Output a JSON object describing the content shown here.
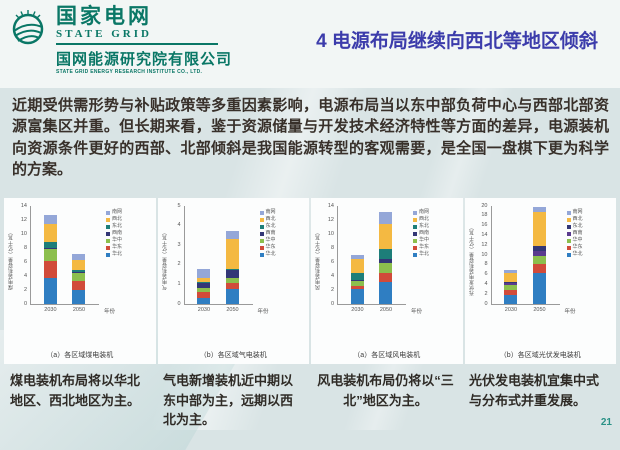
{
  "header": {
    "brand_cn": "国家电网",
    "brand_en": "STATE GRID",
    "institute_cn": "国网能源研究院有限公司",
    "institute_en": "STATE GRID ENERGY RESEARCH INSTITUTE CO., LTD.",
    "title": "4 电源布局继续向西北等地区倾斜",
    "title_color": "#3c3cab",
    "brand_color": "#0a7766"
  },
  "icons": {
    "logo": "state-grid-globe-icon"
  },
  "paragraph": "近期受供需形势与补贴政策等多重因素影响，电源布局当以东中部负荷中心与西部北部资源富集区并重。但长期来看，鉴于资源储量与开发技术经济特性等方面的差异，电源装机向资源条件更好的西部、北部倾斜是我国能源转型的客观需要，是全国一盘棋下更为科学的方案。",
  "chart_data": [
    {
      "type": "bar",
      "stacked": true,
      "caption": "（a）各区域煤电装机",
      "ylabel": "煤电装机容量（亿千瓦）",
      "xlabel": "年份",
      "categories": [
        "2030",
        "2050"
      ],
      "ylim": [
        0,
        14
      ],
      "yticks": [
        0,
        2,
        4,
        6,
        8,
        10,
        12,
        14
      ],
      "legend_position": "right",
      "series": [
        {
          "name": "华北",
          "color": "#2f7ec2",
          "values": [
            3.7,
            2.0
          ]
        },
        {
          "name": "华东",
          "color": "#d14b3a",
          "values": [
            2.5,
            1.3
          ]
        },
        {
          "name": "华中",
          "color": "#8cbf4d",
          "values": [
            1.6,
            1.2
          ]
        },
        {
          "name": "西南",
          "color": "#333776",
          "values": [
            0.2,
            0.1
          ]
        },
        {
          "name": "东北",
          "color": "#1d7e79",
          "values": [
            0.9,
            0.3
          ]
        },
        {
          "name": "西北",
          "color": "#f4b942",
          "values": [
            2.5,
            1.4
          ]
        },
        {
          "name": "南网",
          "color": "#94a7d8",
          "values": [
            1.3,
            0.8
          ]
        }
      ]
    },
    {
      "type": "bar",
      "stacked": true,
      "caption": "（b）各区域气电装机",
      "ylabel": "气电装机容量（亿千瓦）",
      "xlabel": "年份",
      "categories": [
        "2030",
        "2050"
      ],
      "ylim": [
        0,
        5
      ],
      "yticks": [
        0,
        1,
        2,
        3,
        4,
        5
      ],
      "legend_position": "right",
      "series": [
        {
          "name": "华北",
          "color": "#2f7ec2",
          "values": [
            0.3,
            0.78
          ]
        },
        {
          "name": "华东",
          "color": "#d14b3a",
          "values": [
            0.3,
            0.27
          ]
        },
        {
          "name": "华中",
          "color": "#8cbf4d",
          "values": [
            0.2,
            0.3
          ]
        },
        {
          "name": "西南",
          "color": "#333776",
          "values": [
            0.25,
            0.4
          ]
        },
        {
          "name": "东北",
          "color": "#1d7e79",
          "values": [
            0.05,
            0.05
          ]
        },
        {
          "name": "西北",
          "color": "#f4b942",
          "values": [
            0.25,
            1.5
          ]
        },
        {
          "name": "南网",
          "color": "#94a7d8",
          "values": [
            0.45,
            0.45
          ]
        }
      ]
    },
    {
      "type": "bar",
      "stacked": true,
      "caption": "（a）各区域风电装机",
      "ylabel": "风电装机容量（亿千瓦）",
      "xlabel": "年份",
      "categories": [
        "2030",
        "2050"
      ],
      "ylim": [
        0,
        14
      ],
      "yticks": [
        0,
        2,
        4,
        6,
        8,
        10,
        12,
        14
      ],
      "legend_position": "right",
      "series": [
        {
          "name": "华北",
          "color": "#2f7ec2",
          "values": [
            2.1,
            3.1
          ]
        },
        {
          "name": "华东",
          "color": "#d14b3a",
          "values": [
            0.5,
            1.4
          ]
        },
        {
          "name": "华中",
          "color": "#8cbf4d",
          "values": [
            0.7,
            1.4
          ]
        },
        {
          "name": "西南",
          "color": "#333776",
          "values": [
            0.2,
            0.5
          ]
        },
        {
          "name": "东北",
          "color": "#1d7e79",
          "values": [
            0.9,
            1.5
          ]
        },
        {
          "name": "西北",
          "color": "#f4b942",
          "values": [
            2.0,
            3.6
          ]
        },
        {
          "name": "南网",
          "color": "#94a7d8",
          "values": [
            0.6,
            1.7
          ]
        }
      ]
    },
    {
      "type": "bar",
      "stacked": true,
      "caption": "（b）各区域光伏发电装机",
      "ylabel": "光伏发电装机容量（亿千瓦）",
      "xlabel": "年份",
      "categories": [
        "2030",
        "2050"
      ],
      "ylim": [
        0,
        20
      ],
      "yticks": [
        0,
        2,
        4,
        6,
        8,
        10,
        12,
        14,
        16,
        18,
        20
      ],
      "legend_position": "right",
      "series": [
        {
          "name": "华北",
          "color": "#2f7ec2",
          "values": [
            1.8,
            6.3
          ]
        },
        {
          "name": "华东",
          "color": "#d14b3a",
          "values": [
            1.1,
            1.8
          ]
        },
        {
          "name": "华中",
          "color": "#8cbf4d",
          "values": [
            1.0,
            1.6
          ]
        },
        {
          "name": "西南",
          "color": "#5a3b8e",
          "values": [
            0.4,
            1.2
          ]
        },
        {
          "name": "东北",
          "color": "#333776",
          "values": [
            0.1,
            0.9
          ]
        },
        {
          "name": "西北",
          "color": "#f4b942",
          "values": [
            1.9,
            6.9
          ]
        },
        {
          "name": "南网",
          "color": "#94a7d8",
          "values": [
            0.6,
            1.2
          ]
        }
      ]
    }
  ],
  "captions": [
    "煤电装机布局将以华北地区、西北地区为主。",
    "气电新增装机近中期以东中部为主，远期以西北为主。",
    "风电装机布局仍将以“三北”地区为主。",
    "光伏发电装机宜集中式与分布式并重发展。"
  ],
  "page_number": "21"
}
